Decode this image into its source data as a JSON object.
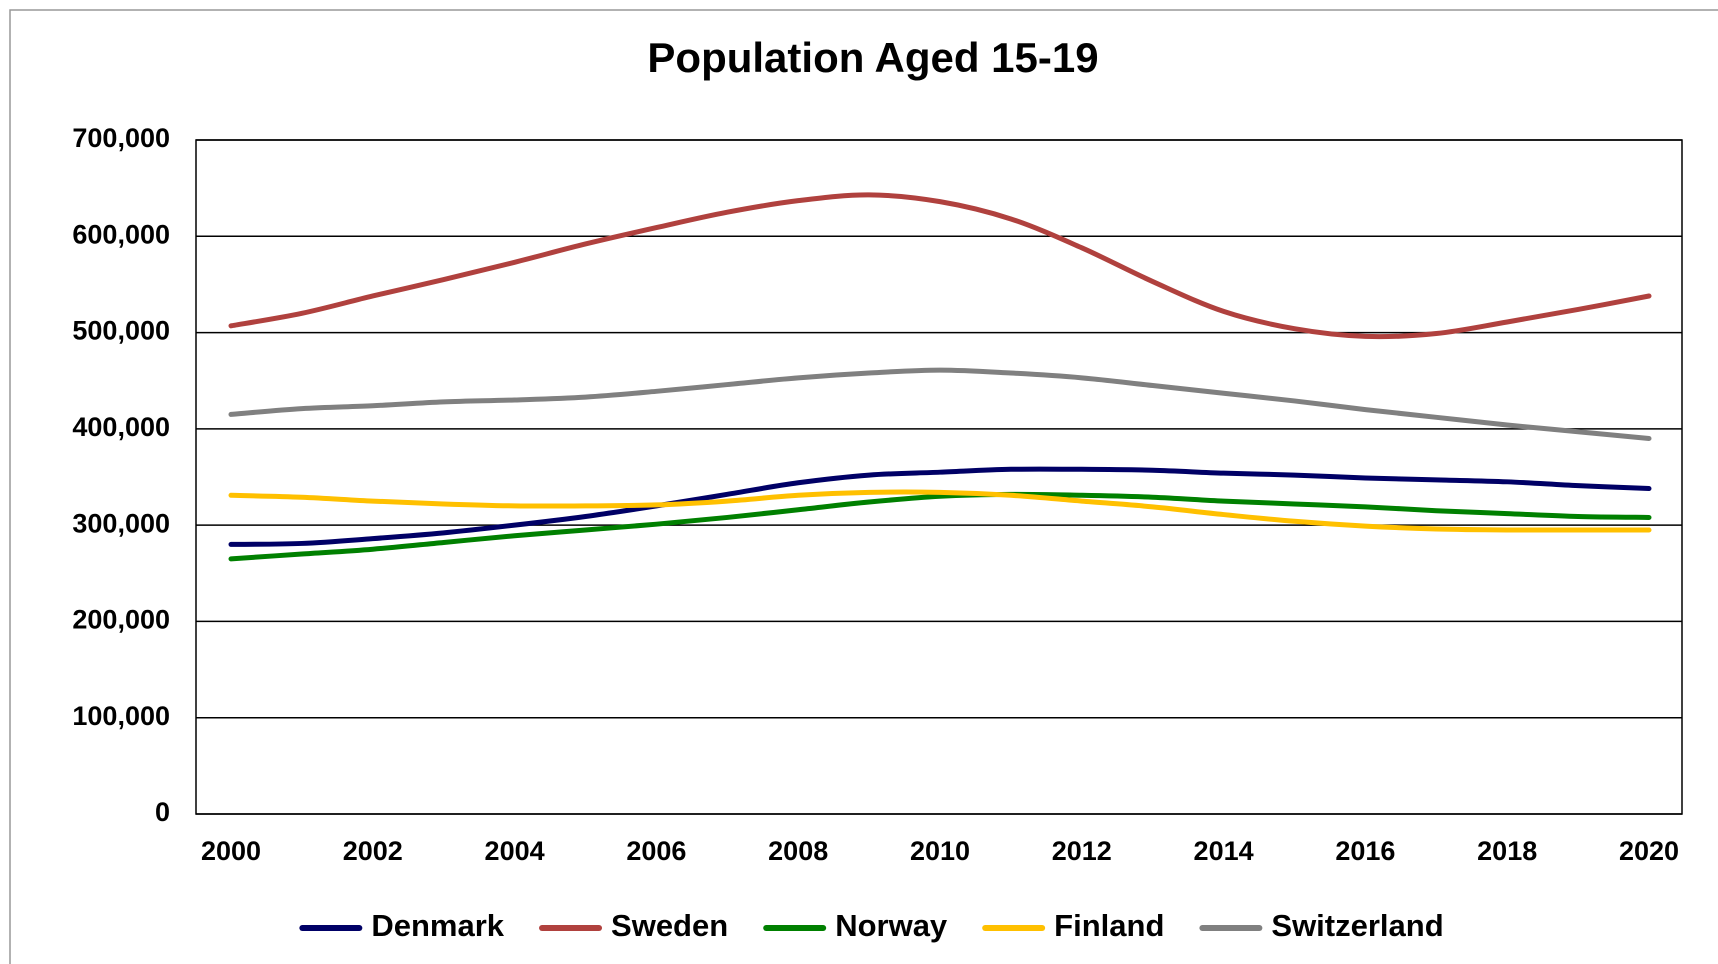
{
  "chart_data": {
    "type": "line",
    "title": "Population Aged 15-19",
    "x": [
      2000,
      2001,
      2002,
      2003,
      2004,
      2005,
      2006,
      2007,
      2008,
      2009,
      2010,
      2011,
      2012,
      2013,
      2014,
      2015,
      2016,
      2017,
      2018,
      2019,
      2020
    ],
    "xlim": [
      2000,
      2020
    ],
    "xticks": [
      2000,
      2002,
      2004,
      2006,
      2008,
      2010,
      2012,
      2014,
      2016,
      2018,
      2020
    ],
    "ylim": [
      0,
      700000
    ],
    "yticks": [
      0,
      {
        "value": 100000,
        "label": "100,000"
      },
      {
        "value": 200000,
        "label": "200,000"
      },
      {
        "value": 300000,
        "label": "300,000"
      },
      {
        "value": 400000,
        "label": "400,000"
      },
      {
        "value": 500000,
        "label": "500,000"
      },
      {
        "value": 600000,
        "label": "600,000"
      },
      {
        "value": 700000,
        "label": "700,000"
      }
    ],
    "grid": true,
    "legend": "bottom",
    "series": [
      {
        "name": "Denmark",
        "color": "#000066",
        "values": [
          280000,
          281000,
          286000,
          292000,
          300000,
          309000,
          320000,
          332000,
          344000,
          352000,
          355000,
          358000,
          358000,
          357000,
          354000,
          352000,
          349000,
          347000,
          345000,
          341000,
          338000
        ]
      },
      {
        "name": "Sweden",
        "color": "#b0413e",
        "values": [
          507000,
          520000,
          538000,
          555000,
          573000,
          592000,
          609000,
          625000,
          637000,
          643000,
          636000,
          618000,
          588000,
          553000,
          522000,
          504000,
          496000,
          499000,
          511000,
          524000,
          538000
        ]
      },
      {
        "name": "Norway",
        "color": "#008000",
        "values": [
          265000,
          270000,
          275000,
          282000,
          289000,
          295000,
          301000,
          308000,
          316000,
          324000,
          330000,
          332000,
          331000,
          329000,
          325000,
          322000,
          319000,
          315000,
          312000,
          309000,
          308000
        ]
      },
      {
        "name": "Finland",
        "color": "#ffc000",
        "values": [
          331000,
          329000,
          325000,
          322000,
          320000,
          320000,
          321000,
          325000,
          331000,
          334000,
          334000,
          331000,
          325000,
          319000,
          311000,
          304000,
          299000,
          296000,
          295000,
          295000,
          295000
        ]
      },
      {
        "name": "Switzerland",
        "color": "#808080",
        "values": [
          415000,
          421000,
          424000,
          428000,
          430000,
          433000,
          439000,
          446000,
          453000,
          458000,
          461000,
          458000,
          453000,
          445000,
          437000,
          429000,
          420000,
          412000,
          404000,
          397000,
          390000
        ]
      }
    ]
  }
}
